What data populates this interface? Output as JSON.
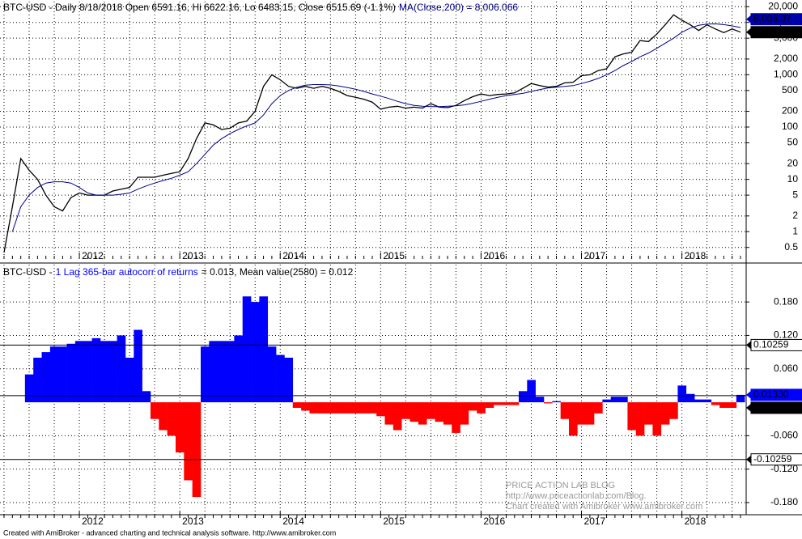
{
  "chart_data": [
    {
      "type": "line",
      "title": "BTC-USD - Daily 8/18/2018 Open 6591.16, Hi 6622.16, Lo 6483.15, Close 6515.69 (-1.1%)",
      "categories": [
        null,
        null,
        null,
        null,
        null,
        null,
        null,
        null,
        null,
        "2012",
        null,
        null,
        null,
        null,
        null,
        null,
        null,
        null,
        null,
        null,
        null,
        "2013",
        null,
        null,
        null,
        null,
        null,
        null,
        null,
        null,
        null,
        null,
        null,
        "2014",
        null,
        null,
        null,
        null,
        null,
        null,
        null,
        null,
        null,
        null,
        null,
        "2015",
        null,
        null,
        null,
        null,
        null,
        null,
        null,
        null,
        null,
        null,
        null,
        "2016",
        null,
        null,
        null,
        null,
        null,
        null,
        null,
        null,
        null,
        null,
        null,
        "2017",
        null,
        null,
        null,
        null,
        null,
        null,
        null,
        null,
        null,
        null,
        null,
        "2018",
        null,
        null,
        null,
        null,
        null,
        null,
        null
      ],
      "series": [
        {
          "color": "#000000",
          "end_label": "6,515.69",
          "label_color": "#000000",
          "values": [
            0.4,
            3,
            25,
            15,
            10,
            5,
            3,
            2.5,
            4.5,
            5.5,
            5,
            5,
            5,
            6,
            6.5,
            7,
            11,
            11,
            11,
            12,
            13,
            14,
            25,
            60,
            120,
            110,
            90,
            95,
            120,
            130,
            200,
            600,
            1000,
            800,
            600,
            550,
            600,
            550,
            600,
            550,
            480,
            400,
            370,
            340,
            300,
            220,
            240,
            250,
            230,
            240,
            230,
            280,
            240,
            235,
            260,
            320,
            380,
            430,
            400,
            420,
            430,
            450,
            550,
            680,
            620,
            580,
            600,
            700,
            720,
            960,
            1000,
            1200,
            1300,
            2200,
            2500,
            2700,
            4500,
            4300,
            6000,
            9000,
            14000,
            11000,
            9000,
            7000,
            9000,
            7500,
            6400,
            7500,
            6515.69
          ]
        },
        {
          "name": "MA(Close,200) = 8,006.066",
          "color": "#00008b",
          "end_label": "8,006.07",
          "label_color": "#0000aa",
          "values": [
            null,
            1,
            3,
            5,
            7,
            8.5,
            9,
            9,
            8.5,
            7,
            5.5,
            5,
            5,
            5,
            5.2,
            5.5,
            6.5,
            7.5,
            8.5,
            9.5,
            10.5,
            12,
            14,
            20,
            30,
            45,
            60,
            75,
            90,
            105,
            120,
            170,
            280,
            400,
            500,
            580,
            630,
            650,
            650,
            640,
            610,
            570,
            530,
            480,
            430,
            390,
            350,
            310,
            280,
            260,
            250,
            245,
            245,
            250,
            255,
            265,
            285,
            310,
            340,
            370,
            400,
            420,
            440,
            480,
            520,
            560,
            580,
            600,
            620,
            680,
            750,
            850,
            1000,
            1200,
            1500,
            1800,
            2200,
            2600,
            3200,
            4000,
            5000,
            6500,
            7800,
            8800,
            9300,
            9400,
            9100,
            8600,
            8006.066
          ]
        }
      ],
      "log_scale": true,
      "grid": true,
      "ylim": [
        0.4,
        25000
      ],
      "yticks": [
        {
          "value": 20000,
          "label": "20,000"
        },
        {
          "value": 10000,
          "label": "10,000"
        },
        {
          "value": 5000,
          "label": "5,000"
        },
        {
          "value": 2000,
          "label": "2,000"
        },
        {
          "value": 1000,
          "label": "1,000"
        },
        500,
        200,
        100,
        50,
        20,
        10,
        5,
        2,
        1,
        0.5
      ]
    },
    {
      "type": "bar",
      "title": "BTC-USD -",
      "title_value": "= 0.013,   Mean value(2580) = 0.012",
      "categories": [
        null,
        null,
        null,
        null,
        null,
        null,
        null,
        null,
        null,
        "2012",
        null,
        null,
        null,
        null,
        null,
        null,
        null,
        null,
        null,
        null,
        null,
        "2013",
        null,
        null,
        null,
        null,
        null,
        null,
        null,
        null,
        null,
        null,
        null,
        "2014",
        null,
        null,
        null,
        null,
        null,
        null,
        null,
        null,
        null,
        null,
        null,
        "2015",
        null,
        null,
        null,
        null,
        null,
        null,
        null,
        null,
        null,
        null,
        null,
        "2016",
        null,
        null,
        null,
        null,
        null,
        null,
        null,
        null,
        null,
        null,
        null,
        "2017",
        null,
        null,
        null,
        null,
        null,
        null,
        null,
        null,
        null,
        null,
        null,
        "2018",
        null,
        null,
        null,
        null,
        null,
        null,
        null
      ],
      "series": [
        {
          "name": "1 Lag 365-bar autocorr of returns",
          "color": "#0000ff",
          "negative_color": "#ff0000",
          "end_label": "0.01330",
          "values": [
            null,
            null,
            null,
            0.05,
            0.08,
            0.09,
            0.1,
            0.1,
            0.105,
            0.11,
            0.11,
            0.115,
            0.11,
            0.11,
            0.12,
            0.08,
            0.13,
            0.02,
            -0.03,
            -0.05,
            -0.06,
            -0.09,
            -0.14,
            -0.17,
            0.1,
            0.11,
            0.11,
            0.11,
            0.12,
            0.19,
            0.18,
            0.19,
            0.1,
            0.085,
            0.08,
            -0.01,
            -0.015,
            -0.02,
            -0.02,
            -0.02,
            -0.02,
            -0.02,
            -0.02,
            -0.02,
            -0.02,
            -0.025,
            -0.04,
            -0.05,
            -0.03,
            -0.035,
            -0.04,
            -0.03,
            -0.035,
            -0.04,
            -0.055,
            -0.04,
            -0.015,
            -0.02,
            -0.01,
            -0.005,
            -0.005,
            -0.005,
            0.02,
            0.04,
            0.01,
            -0.002,
            0.002,
            -0.03,
            -0.06,
            -0.04,
            -0.04,
            -0.02,
            0.005,
            0.01,
            0.01,
            -0.05,
            -0.06,
            -0.04,
            -0.06,
            -0.04,
            -0.03,
            0.03,
            0.015,
            0.005,
            0.005,
            -0.005,
            -0.01,
            -0.01,
            0.0133
          ]
        }
      ],
      "hlines": [
        0.10259,
        0.01197,
        -0.10259
      ],
      "grid": true,
      "ylim": [
        -0.196,
        0.247
      ],
      "yticks": [
        {
          "value": 0.18,
          "label": "0.180"
        },
        {
          "value": 0.12,
          "label": "0.120"
        },
        {
          "value": 0.06,
          "label": "0.060"
        },
        {
          "value": -0.06,
          "label": "-0.060"
        },
        {
          "value": -0.12,
          "label": "-0.120"
        },
        {
          "value": -0.18,
          "label": "-0.180"
        }
      ]
    }
  ],
  "watermark": [
    "PRICE ACTION LAB BLOG",
    "http://www.priceactionlab.com/Blog.",
    "Chart created with Amibroker www.amibroker.com"
  ],
  "footer": "Created with AmiBroker - advanced charting and technical analysis software. http://www.amibroker.com"
}
